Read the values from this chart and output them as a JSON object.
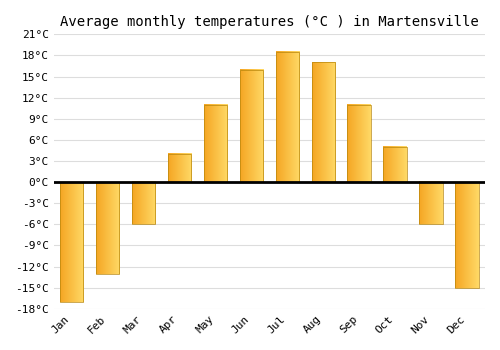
{
  "title": "Average monthly temperatures (°C ) in Martensville",
  "months": [
    "Jan",
    "Feb",
    "Mar",
    "Apr",
    "May",
    "Jun",
    "Jul",
    "Aug",
    "Sep",
    "Oct",
    "Nov",
    "Dec"
  ],
  "values": [
    -17,
    -13,
    -6,
    4,
    11,
    16,
    18.5,
    17,
    11,
    5,
    -6,
    -15
  ],
  "bar_color_left": "#F5A623",
  "bar_color_right": "#FFD966",
  "bar_edge_color": "#b8860b",
  "ylim": [
    -18,
    21
  ],
  "yticks": [
    -18,
    -15,
    -12,
    -9,
    -6,
    -3,
    0,
    3,
    6,
    9,
    12,
    15,
    18,
    21
  ],
  "grid_color": "#dddddd",
  "background_color": "#ffffff",
  "zero_line_color": "#000000",
  "title_fontsize": 10,
  "tick_fontsize": 8,
  "font_family": "monospace"
}
